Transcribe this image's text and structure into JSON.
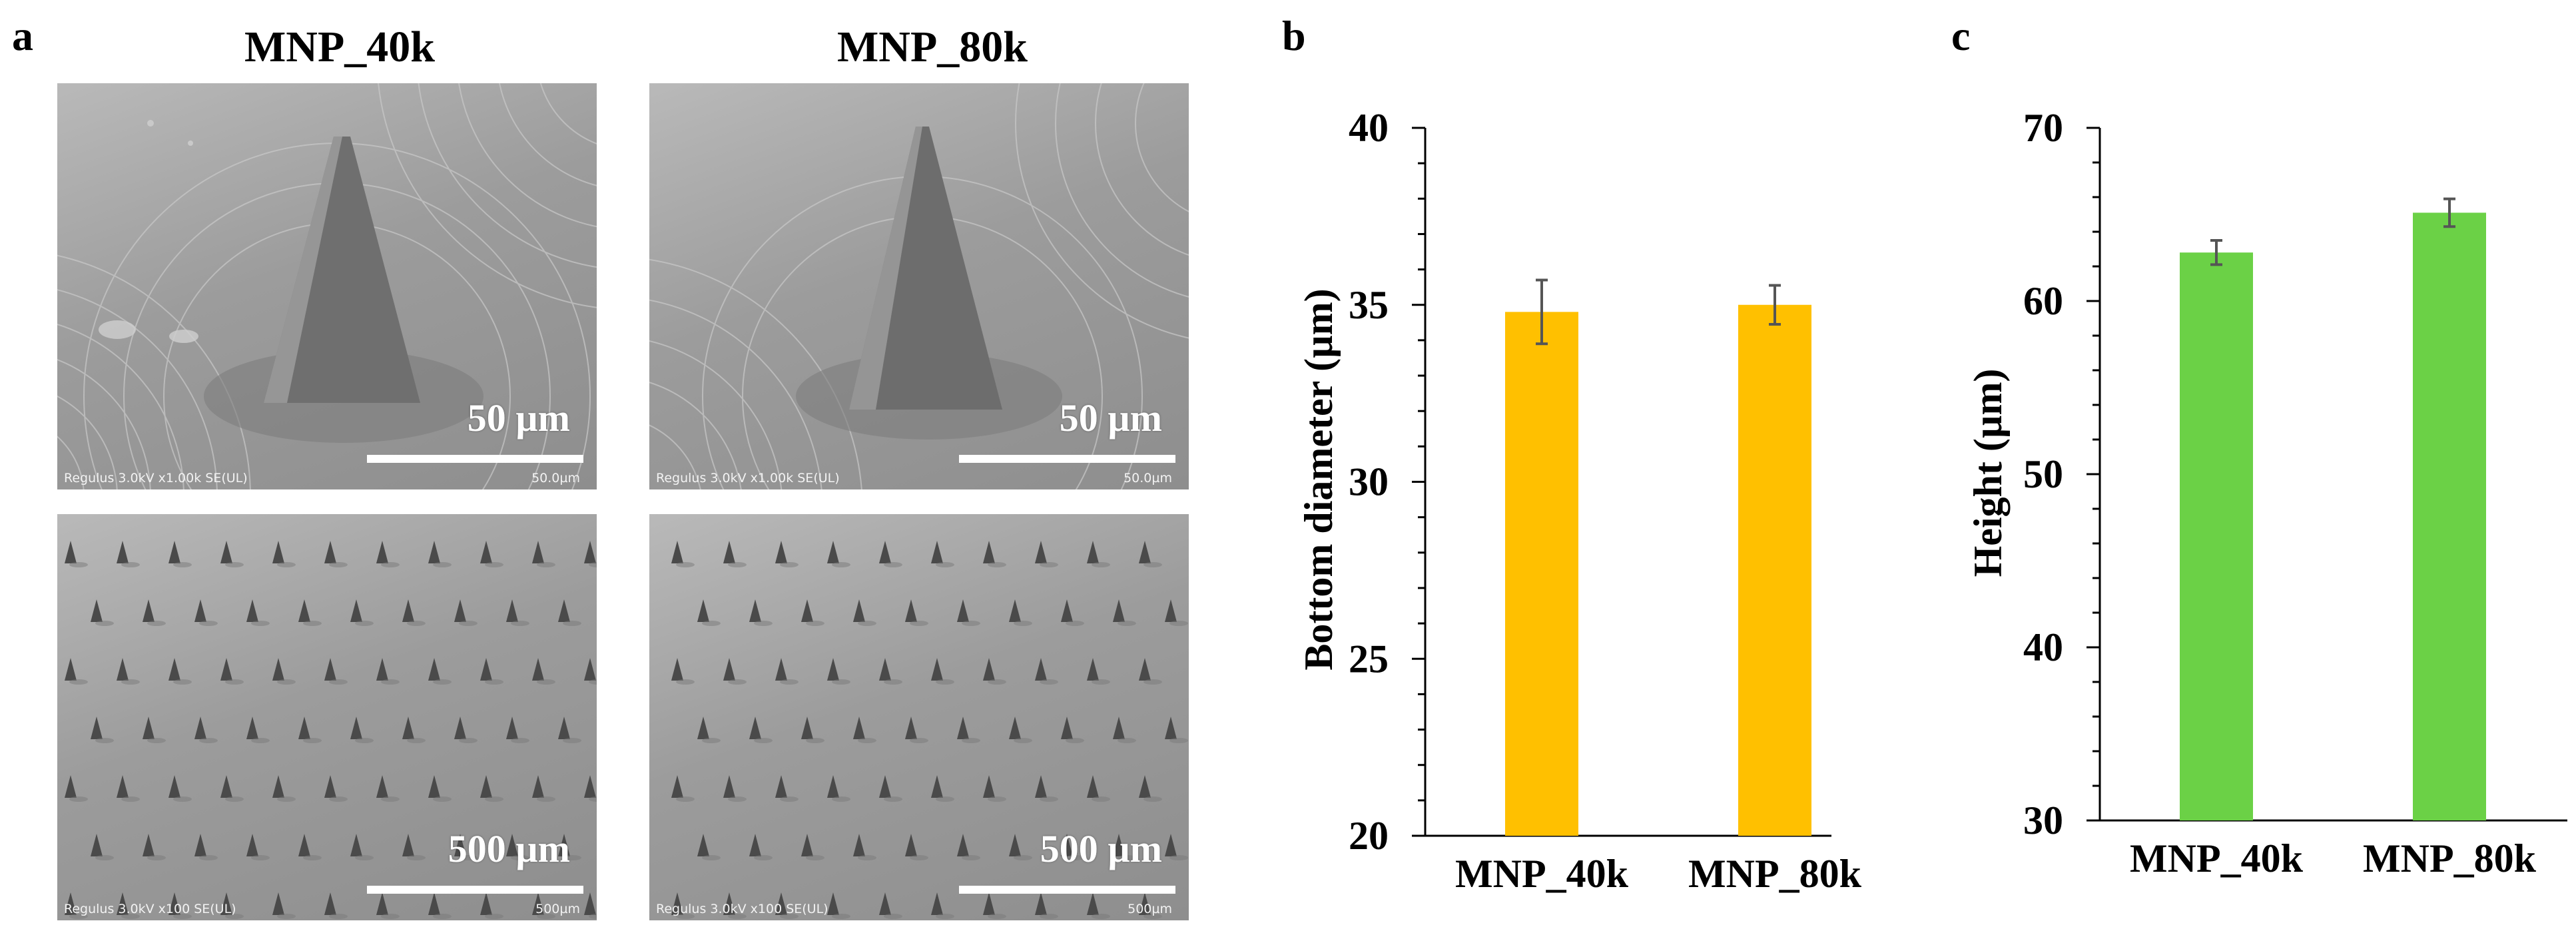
{
  "panel_a": {
    "letter": "a",
    "columns": [
      "MNP_40k",
      "MNP_80k"
    ],
    "images": [
      {
        "scale_label": "50 µm",
        "meta_left": "Regulus 3.0kV x1.00k SE(UL)",
        "meta_right": "50.0µm"
      },
      {
        "scale_label": "50 µm",
        "meta_left": "Regulus 3.0kV x1.00k SE(UL)",
        "meta_right": "50.0µm"
      },
      {
        "scale_label": "500 µm",
        "meta_left": "Regulus 3.0kV x100 SE(UL)",
        "meta_right": "500µm"
      },
      {
        "scale_label": "500 µm",
        "meta_left": "Regulus 3.0kV x100 SE(UL)",
        "meta_right": "500µm"
      }
    ]
  },
  "chart_data": [
    {
      "panel": "b",
      "type": "bar",
      "categories": [
        "MNP_40k",
        "MNP_80k"
      ],
      "values": [
        34.8,
        35.0
      ],
      "errors": [
        0.9,
        0.55
      ],
      "ylabel": "Bottom diameter (µm)",
      "xlabel": "",
      "ylim": [
        20,
        40
      ],
      "yticks": [
        20,
        25,
        30,
        35,
        40
      ],
      "color": "#FFC000",
      "grid": false
    },
    {
      "panel": "c",
      "type": "bar",
      "categories": [
        "MNP_40k",
        "MNP_80k"
      ],
      "values": [
        62.8,
        65.1
      ],
      "errors": [
        0.7,
        0.8
      ],
      "ylabel": "Height (µm)",
      "xlabel": "",
      "ylim": [
        30,
        70
      ],
      "yticks": [
        30,
        40,
        50,
        60,
        70
      ],
      "color": "#6BD146",
      "grid": false
    }
  ]
}
